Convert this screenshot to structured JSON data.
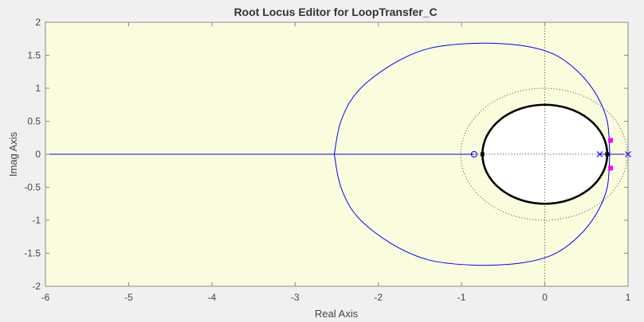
{
  "chart_data": {
    "type": "line",
    "title": "Root Locus Editor for LoopTransfer_C",
    "xlabel": "Real Axis",
    "ylabel": "Imag Axis",
    "xlim": [
      -6,
      1
    ],
    "ylim": [
      -2,
      2
    ],
    "xticks": [
      "-6",
      "-5",
      "-4",
      "-3",
      "-2",
      "-1",
      "0",
      "1"
    ],
    "yticks": [
      "2",
      "1.5",
      "1",
      "0.5",
      "0",
      "-0.5",
      "-1",
      "-1.5",
      "-2"
    ],
    "grid": "off",
    "locus": {
      "color": "#0000ff",
      "real_axis_segment": [
        -6,
        -0.85
      ],
      "branch_points": [
        {
          "x": 0.78,
          "y": 0
        },
        {
          "x": 0.75,
          "y": 0.5
        },
        {
          "x": 0.62,
          "y": 0.9
        },
        {
          "x": 0.4,
          "y": 1.25
        },
        {
          "x": 0.1,
          "y": 1.52
        },
        {
          "x": -0.3,
          "y": 1.65
        },
        {
          "x": -0.85,
          "y": 1.68
        },
        {
          "x": -1.4,
          "y": 1.6
        },
        {
          "x": -1.85,
          "y": 1.35
        },
        {
          "x": -2.25,
          "y": 0.95
        },
        {
          "x": -2.45,
          "y": 0.5
        },
        {
          "x": -2.53,
          "y": 0
        }
      ]
    },
    "poles": [
      {
        "x": 1.0,
        "y": 0
      },
      {
        "x": 0.66,
        "y": 0
      }
    ],
    "zeros": [
      {
        "x": -0.85,
        "y": 0
      }
    ],
    "closed_loop_poles": [
      {
        "x": 0.79,
        "y": 0.21
      },
      {
        "x": 0.79,
        "y": -0.21
      }
    ],
    "stability_region": {
      "center": [
        0,
        0
      ],
      "rx": 0.75,
      "ry": 0.75,
      "fill": "#ffffff",
      "stroke": "#000000"
    },
    "damping_boundary": {
      "center": [
        -0.01,
        0
      ],
      "rx": 1.0,
      "ry": 1.0,
      "style": "dotted"
    },
    "black_markers": [
      {
        "x": -0.75,
        "y": 0
      },
      {
        "x": 0.75,
        "y": 0
      }
    ],
    "colors": {
      "plot_background": "#fbfbde",
      "figure_background": "#f0f0f0",
      "marker": "#ff00ff"
    }
  }
}
